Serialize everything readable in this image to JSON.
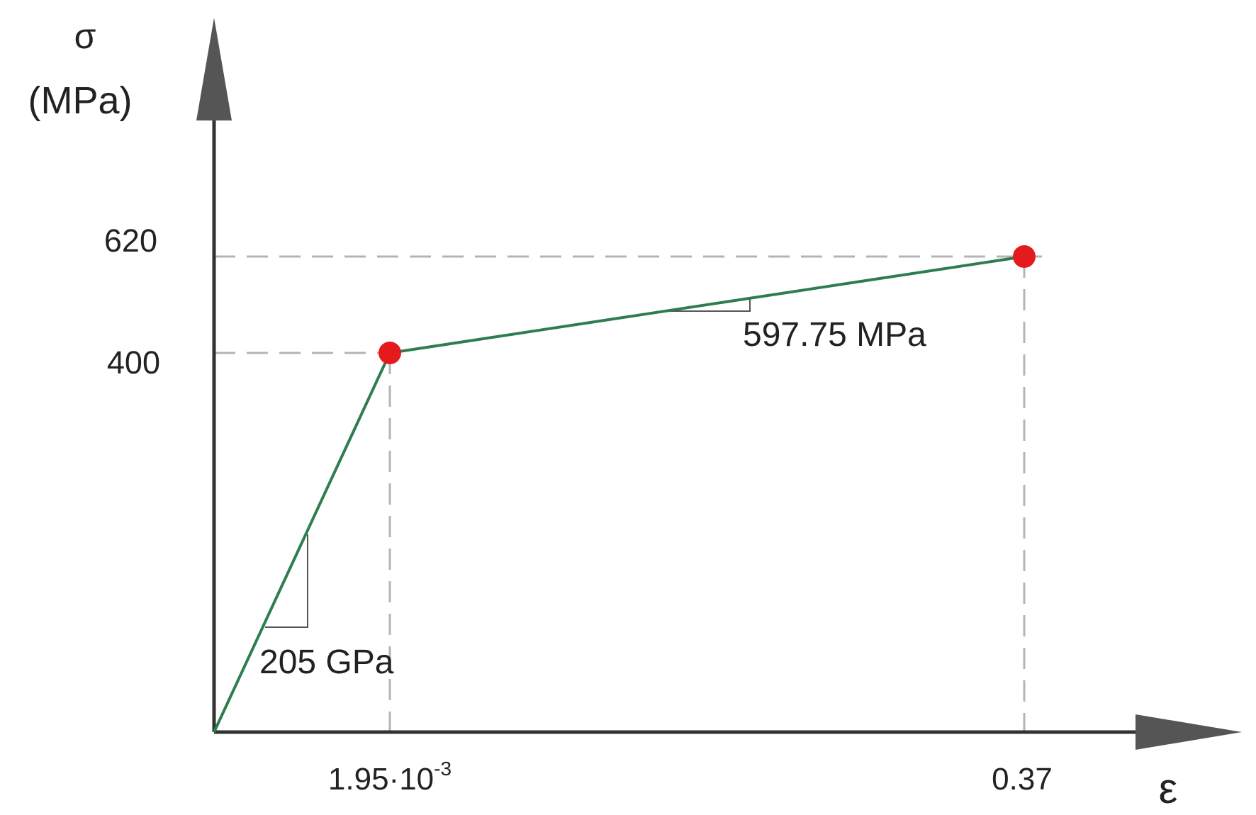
{
  "chart_data": {
    "type": "line",
    "y_symbol": "σ",
    "y_unit": "(MPa)",
    "x_symbol": "ε",
    "series": [
      {
        "points": [
          {
            "x": 0,
            "y": 0
          },
          {
            "x": 0.00195,
            "y": 400
          },
          {
            "x": 0.37,
            "y": 620
          }
        ]
      }
    ],
    "y_ticks": [
      {
        "value": 400,
        "label": "400"
      },
      {
        "value": 620,
        "label": "620"
      }
    ],
    "x_ticks": [
      {
        "value": 0.00195,
        "label_base": "1.95·10",
        "label_exp": "-3"
      },
      {
        "value": 0.37,
        "label": "0.37"
      }
    ],
    "annotations": [
      {
        "label": "205 GPa",
        "segment": 0
      },
      {
        "label": "597.75 MPa",
        "segment": 1
      }
    ],
    "scale_note": "schematic, not to scale",
    "colors": {
      "line": "#2e7d4f",
      "marker": "#e41a1c",
      "axis": "#333333",
      "guide": "#b4b4b4"
    },
    "grid": false,
    "legend": "none"
  }
}
